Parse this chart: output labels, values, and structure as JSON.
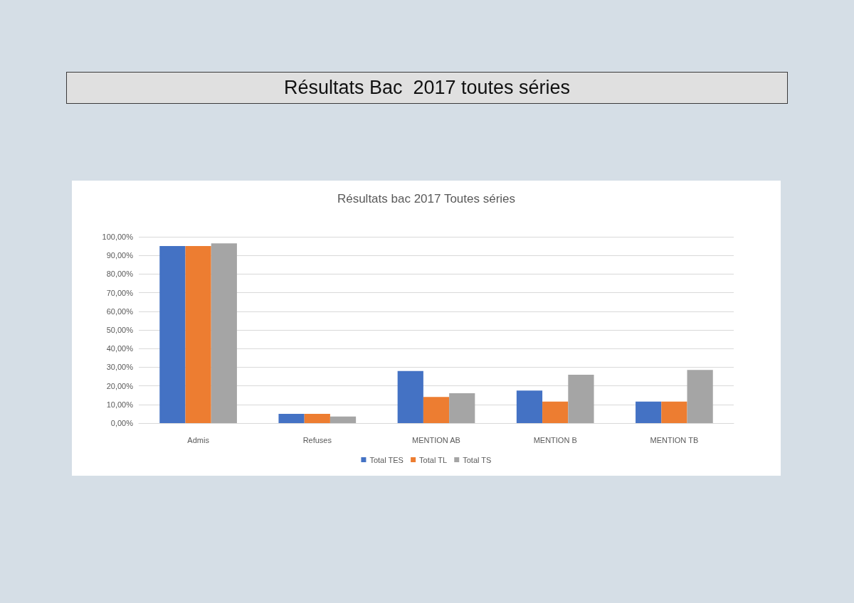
{
  "chart_data": {
    "type": "bar",
    "title": "Résultats Bac  2017 toutes séries",
    "subtitle": "Résultats bac 2017 Toutes séries",
    "categories": [
      "Admis",
      "Refuses",
      "MENTION AB",
      "MENTION B",
      "MENTION TB"
    ],
    "series": [
      {
        "name": "Total TES",
        "color": "#4472c4",
        "values": [
          95,
          5,
          28,
          17.5,
          11.5
        ]
      },
      {
        "name": "Total TL",
        "color": "#ed7d31",
        "values": [
          95,
          5,
          14,
          11.5,
          11.5
        ]
      },
      {
        "name": "Total TS",
        "color": "#a5a5a5",
        "values": [
          96.5,
          3.5,
          16,
          26,
          28.5
        ]
      }
    ],
    "ylim": [
      0,
      100
    ],
    "yticks": [
      {
        "value": 0,
        "label": "0,00%"
      },
      {
        "value": 10,
        "label": "10,00%"
      },
      {
        "value": 20,
        "label": "20,00%"
      },
      {
        "value": 30,
        "label": "30,00%"
      },
      {
        "value": 40,
        "label": "40,00%"
      },
      {
        "value": 50,
        "label": "50,00%"
      },
      {
        "value": 60,
        "label": "60,00%"
      },
      {
        "value": 70,
        "label": "70,00%"
      },
      {
        "value": 80,
        "label": "80,00%"
      },
      {
        "value": 90,
        "label": "90,00%"
      },
      {
        "value": 100,
        "label": "100,00%"
      }
    ],
    "grid": "y",
    "legend": "bottom"
  }
}
